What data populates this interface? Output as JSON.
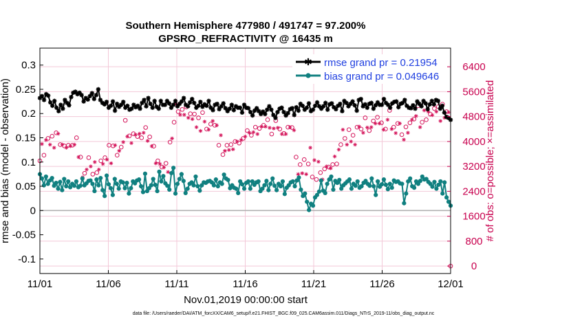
{
  "chart_data": {
    "type": "line",
    "title": "Southern Hemisphere 477980 / 491747 = 97.200%",
    "subtitle": "GPSRO_REFRACTIVITY @ 16435 m",
    "xlabel": "Nov.01,2019 00:00:00 start",
    "ylabel": "rmse and bias (model - observation)",
    "y2label": "# of obs: o=possible; ×=assimilated",
    "footer": "data file: /Users/raeder/DAI/ATM_forcXX/CAM6_setup/f.e21.FHIST_BGC.f09_025.CAM6assim.011/Diags_NTrS_2019-11/obs_diag_output.nc",
    "x_ticks": [
      "11/01",
      "11/06",
      "11/11",
      "11/16",
      "11/21",
      "11/26",
      "12/01"
    ],
    "x_tick_days": [
      0,
      5,
      10,
      15,
      20,
      25,
      30
    ],
    "xlim_days": [
      0,
      30
    ],
    "ylim": [
      -0.13,
      0.335
    ],
    "y_ticks": [
      "0.3",
      "0.25",
      "0.2",
      "0.15",
      "0.1",
      "0.05",
      "0",
      "-0.05",
      "-0.1"
    ],
    "y_tick_values": [
      0.3,
      0.25,
      0.2,
      0.15,
      0.1,
      0.05,
      0,
      -0.05,
      -0.1
    ],
    "y2lim": [
      -240,
      7000
    ],
    "y2_ticks": [
      "6400",
      "5600",
      "4800",
      "4000",
      "3200",
      "2400",
      "1600",
      "800",
      "0"
    ],
    "y2_tick_values": [
      6400,
      5600,
      4800,
      4000,
      3200,
      2400,
      1600,
      800,
      0
    ],
    "grid": true,
    "legend_position": "top-right",
    "zero_line": 0,
    "colors": {
      "rmse": "#000000",
      "bias": "#108080",
      "obs": "#d4145a",
      "grid": "#f3c8d8",
      "zero": "#b0b0b0",
      "legend_text": "#1f3fe0",
      "right_axis": "#c8004e"
    },
    "series": [
      {
        "name": "rmse grand pr = 0.21954",
        "axis": "left",
        "values": [
          0.232,
          0.236,
          0.228,
          0.24,
          0.237,
          0.223,
          0.216,
          0.226,
          0.212,
          0.205,
          0.218,
          0.21,
          0.228,
          0.222,
          0.217,
          0.234,
          0.243,
          0.245,
          0.24,
          0.243,
          0.238,
          0.225,
          0.232,
          0.229,
          0.236,
          0.242,
          0.23,
          0.238,
          0.25,
          0.228,
          0.222,
          0.219,
          0.224,
          0.212,
          0.216,
          0.225,
          0.206,
          0.22,
          0.214,
          0.218,
          0.224,
          0.212,
          0.216,
          0.208,
          0.21,
          0.218,
          0.213,
          0.216,
          0.21,
          0.222,
          0.228,
          0.215,
          0.232,
          0.22,
          0.212,
          0.226,
          0.214,
          0.21,
          0.226,
          0.218,
          0.218,
          0.226,
          0.221,
          0.212,
          0.218,
          0.226,
          0.215,
          0.22,
          0.225,
          0.232,
          0.218,
          0.215,
          0.223,
          0.23,
          0.222,
          0.212,
          0.216,
          0.224,
          0.214,
          0.219,
          0.216,
          0.226,
          0.212,
          0.207,
          0.218,
          0.22,
          0.209,
          0.215,
          0.221,
          0.211,
          0.205,
          0.21,
          0.218,
          0.207,
          0.215,
          0.212,
          0.212,
          0.202,
          0.218,
          0.212,
          0.211,
          0.203,
          0.196,
          0.206,
          0.211,
          0.205,
          0.199,
          0.204,
          0.199,
          0.208,
          0.215,
          0.208,
          0.197,
          0.191,
          0.203,
          0.21,
          0.212,
          0.203,
          0.196,
          0.201,
          0.209,
          0.211,
          0.197,
          0.213,
          0.206,
          0.22,
          0.216,
          0.208,
          0.212,
          0.221,
          0.205,
          0.208,
          0.216,
          0.223,
          0.215,
          0.21,
          0.215,
          0.222,
          0.208,
          0.219,
          0.221,
          0.213,
          0.209,
          0.216,
          0.22,
          0.205,
          0.226,
          0.222,
          0.215,
          0.22,
          0.225,
          0.217,
          0.206,
          0.228,
          0.23,
          0.215,
          0.219,
          0.212,
          0.22,
          0.222,
          0.21,
          0.217,
          0.223,
          0.218,
          0.218,
          0.23,
          0.222,
          0.218,
          0.212,
          0.221,
          0.224,
          0.225,
          0.213,
          0.22,
          0.222,
          0.228,
          0.216,
          0.212,
          0.211,
          0.217,
          0.21,
          0.225,
          0.22,
          0.215,
          0.226,
          0.221,
          0.209,
          0.219,
          0.226,
          0.219,
          0.228,
          0.226,
          0.21,
          0.216,
          0.202,
          0.193,
          0.191,
          0.187
        ]
      },
      {
        "name": "bias grand pr = 0.049646",
        "axis": "left",
        "values": [
          0.075,
          0.066,
          0.052,
          0.07,
          0.055,
          0.062,
          0.067,
          0.051,
          0.057,
          0.045,
          0.059,
          0.042,
          0.065,
          0.05,
          0.06,
          0.048,
          0.055,
          0.051,
          0.06,
          0.048,
          0.051,
          0.066,
          0.052,
          0.056,
          0.061,
          0.062,
          0.055,
          0.04,
          0.064,
          0.052,
          0.067,
          0.042,
          0.03,
          0.072,
          0.054,
          0.046,
          0.032,
          0.065,
          0.055,
          0.045,
          0.06,
          0.058,
          0.046,
          0.057,
          0.035,
          0.046,
          0.06,
          0.056,
          0.062,
          0.064,
          0.05,
          0.038,
          0.076,
          0.04,
          0.046,
          0.052,
          0.065,
          0.053,
          0.04,
          0.08,
          0.06,
          0.071,
          0.056,
          0.051,
          0.043,
          0.077,
          0.088,
          0.035,
          0.055,
          0.065,
          0.075,
          0.061,
          0.036,
          0.045,
          0.055,
          0.058,
          0.052,
          0.07,
          0.05,
          0.041,
          0.052,
          0.058,
          0.057,
          0.06,
          0.061,
          0.058,
          0.052,
          0.064,
          0.05,
          0.058,
          0.055,
          0.074,
          0.066,
          0.063,
          0.046,
          0.052,
          0.047,
          0.045,
          0.036,
          0.06,
          0.054,
          0.045,
          0.057,
          0.06,
          0.045,
          0.06,
          0.053,
          0.058,
          0.06,
          0.04,
          0.045,
          0.052,
          0.061,
          0.042,
          0.055,
          0.066,
          0.051,
          0.042,
          0.055,
          0.05,
          0.06,
          0.034,
          0.047,
          0.052,
          0.058,
          0.06,
          0.05,
          0.062,
          0.068,
          0.043,
          0.03,
          0.035,
          0.018,
          0.001,
          0.014,
          0.01,
          0.027,
          0.032,
          0.039,
          0.062,
          0.041,
          0.036,
          0.055,
          0.064,
          0.07,
          0.043,
          0.061,
          0.057,
          0.063,
          0.045,
          0.052,
          0.056,
          0.06,
          0.064,
          0.045,
          0.055,
          0.051,
          0.06,
          0.047,
          0.05,
          0.057,
          0.061,
          0.055,
          0.051,
          0.066,
          0.05,
          0.032,
          0.06,
          0.049,
          0.054,
          0.064,
          0.053,
          0.044,
          0.055,
          0.047,
          0.062,
          0.059,
          0.06,
          0.056,
          0.055,
          0.015,
          0.035,
          0.06,
          0.066,
          0.05,
          0.047,
          0.06,
          0.055,
          0.061,
          0.07,
          0.064,
          0.065,
          0.059,
          0.055,
          0.049,
          0.059,
          0.045,
          0.053,
          0.06,
          0.035,
          0.058,
          0.027,
          0.018,
          0.01
        ]
      },
      {
        "name": "possible",
        "axis": "right",
        "marker": "o",
        "values": [
          3380,
          4050,
          3560,
          4180,
          4100,
          4000,
          4170,
          3920,
          4280,
          4380,
          3900,
          4000,
          3860,
          3900,
          3880,
          3950,
          3880,
          4000,
          4120,
          3600,
          3500,
          2950,
          2980,
          3180,
          3480,
          3300,
          2950,
          3440,
          3000,
          3200,
          3380,
          3380,
          3480,
          3520,
          3880,
          3380,
          3860,
          3980,
          3560,
          3800,
          3820,
          4080,
          4680,
          4270,
          4180,
          4050,
          4250,
          4320,
          4160,
          4360,
          4120,
          4380,
          4450,
          4120,
          4150,
          3950,
          3850,
          3400,
          3380,
          3380,
          3180,
          3270,
          3300,
          3120,
          3980,
          4200,
          4620,
          5350,
          4960,
          4980,
          5030,
          4980,
          5110,
          4880,
          4890,
          4850,
          4880,
          4580,
          4760,
          4460,
          4930,
          4760,
          4400,
          4500,
          4560,
          4780,
          4520,
          4650,
          3880,
          4320,
          3580,
          3800,
          3880,
          3830,
          3900,
          3850,
          4000,
          4100,
          3950,
          4150,
          4100,
          4280,
          4350,
          4400,
          4200,
          4420,
          4460,
          4350,
          4420,
          4600,
          4520,
          4600,
          4700,
          4560,
          4240,
          4540,
          4670,
          4560,
          4400,
          4360,
          4260,
          4360,
          4460,
          4580,
          4450,
          4480,
          3500,
          3040,
          3260,
          3080,
          3420,
          3050,
          3280,
          3900,
          2860,
          3500,
          2780,
          3450,
          3000,
          2880,
          3120,
          3300,
          3180,
          3240,
          3260,
          3620,
          3280,
          3840,
          3900,
          4500,
          4100,
          4000,
          4380,
          4100,
          4200,
          4000,
          4460,
          4600,
          4400,
          4400,
          4760,
          4570,
          4350,
          4580,
          4660,
          4710,
          4780,
          4700,
          4600,
          4500,
          4400,
          4820,
          5000,
          4520,
          4460,
          4380,
          4580,
          4700,
          4220,
          4160,
          4470,
          4400,
          4600,
          4820,
          4720,
          4950,
          5150,
          4580,
          4620,
          5120,
          4700,
          5080,
          4880,
          4970,
          5060,
          5080,
          5120,
          4780,
          5200,
          4880,
          4960,
          5050,
          0
        ]
      },
      {
        "name": "assimilated",
        "axis": "right",
        "marker": "x",
        "values": [
          3280,
          3920,
          3480,
          4050,
          4000,
          3900,
          4050,
          3800,
          4150,
          4250,
          3800,
          3900,
          3750,
          3800,
          3780,
          3850,
          3800,
          3900,
          4000,
          3500,
          3400,
          2850,
          2880,
          3100,
          3380,
          3200,
          2850,
          3340,
          2900,
          3100,
          3280,
          3280,
          3380,
          3420,
          3780,
          3300,
          3760,
          3880,
          3460,
          3700,
          3720,
          3980,
          4560,
          4160,
          4080,
          3950,
          4150,
          4220,
          4060,
          4250,
          4020,
          4280,
          4350,
          4020,
          4050,
          3850,
          3750,
          3300,
          3280,
          3280,
          3080,
          3170,
          3200,
          3020,
          3880,
          4100,
          4500,
          5200,
          4840,
          4860,
          4900,
          4860,
          4980,
          4760,
          4760,
          4720,
          4760,
          4460,
          4640,
          4340,
          4800,
          4640,
          4280,
          4380,
          4440,
          4660,
          4400,
          4520,
          3780,
          4200,
          3480,
          3700,
          3780,
          3730,
          3800,
          3750,
          3900,
          4000,
          3850,
          4050,
          4000,
          4160,
          4240,
          4280,
          4100,
          4300,
          4340,
          4240,
          4300,
          4480,
          4400,
          4480,
          4580,
          4440,
          4130,
          4420,
          4550,
          4440,
          4280,
          4240,
          4150,
          4240,
          4340,
          4460,
          4340,
          4360,
          3400,
          2950,
          3160,
          2980,
          3320,
          2950,
          3180,
          3800,
          2780,
          3400,
          2700,
          3350,
          2900,
          2780,
          3020,
          3200,
          3080,
          3140,
          3160,
          3520,
          3180,
          3740,
          3800,
          4380,
          3980,
          3900,
          4260,
          4000,
          4100,
          3900,
          4340,
          4480,
          4280,
          4280,
          4640,
          4450,
          4240,
          4460,
          4540,
          4580,
          4660,
          4580,
          4480,
          4380,
          4280,
          4700,
          4880,
          4400,
          4350,
          4270,
          4460,
          4580,
          4100,
          4060,
          4350,
          4280,
          4480,
          4700,
          4600,
          4820,
          5020,
          4460,
          4500,
          5000,
          4580,
          4960,
          4760,
          4850,
          4940,
          4960,
          5000,
          4660,
          5080,
          4760,
          4840,
          4940,
          0
        ]
      }
    ]
  }
}
